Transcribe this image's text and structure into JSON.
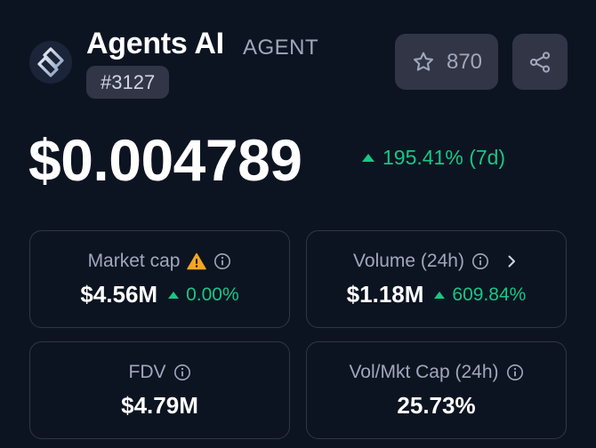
{
  "coin": {
    "name": "Agents AI",
    "symbol": "AGENT",
    "rank": "#3127",
    "logo_icon": "agents-ai-logo"
  },
  "actions": {
    "watchlist_count": "870",
    "star_icon": "star-icon",
    "share_icon": "share-icon"
  },
  "price": {
    "value": "$0.004789",
    "change": "195.41% (7d)",
    "direction": "up"
  },
  "stats": {
    "market_cap": {
      "label": "Market cap",
      "value": "$4.56M",
      "change": "0.00%"
    },
    "volume": {
      "label": "Volume (24h)",
      "value": "$1.18M",
      "change": "609.84%"
    },
    "fdv": {
      "label": "FDV",
      "value": "$4.79M"
    },
    "vol_mkt_cap": {
      "label": "Vol/Mkt Cap (24h)",
      "value": "25.73%"
    }
  },
  "colors": {
    "background": "#0d1421",
    "surface": "#323546",
    "positive": "#16c784",
    "muted": "#a1a7bb",
    "warning": "#f5a623"
  }
}
